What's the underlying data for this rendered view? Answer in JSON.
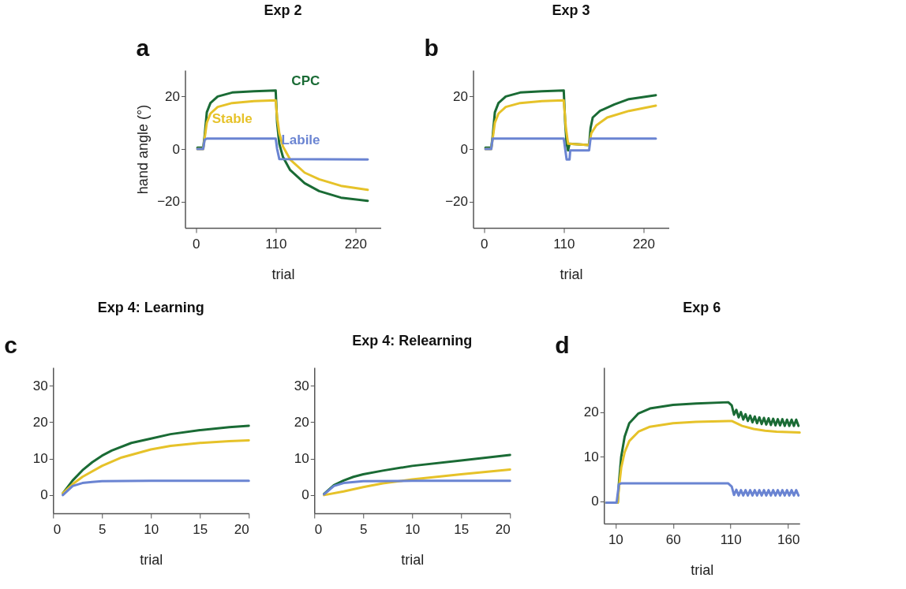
{
  "chart_data": [
    {
      "type": "line",
      "title": "Exp 2",
      "xlabel": "trial",
      "ylabel": "hand angle (°)",
      "xlim": [
        -15,
        255
      ],
      "xticks": [
        0,
        110,
        220
      ],
      "ylim": [
        -30,
        30
      ],
      "yticks": [
        -20,
        0,
        20
      ],
      "annotations": [
        "a"
      ],
      "series": [
        {
          "name": "CPC",
          "color": "#1a6b35",
          "x": [
            2,
            10,
            12,
            15,
            20,
            30,
            50,
            80,
            110,
            112,
            115,
            120,
            130,
            150,
            170,
            200,
            237
          ],
          "values": [
            0.5,
            0.5,
            5,
            14,
            17.5,
            20,
            21.5,
            22,
            22.3,
            10,
            2,
            -3,
            -8,
            -13,
            -16,
            -18.5,
            -19.7
          ]
        },
        {
          "name": "Stable",
          "color": "#e6c229",
          "x": [
            2,
            10,
            12,
            15,
            20,
            30,
            50,
            80,
            110,
            112,
            115,
            120,
            130,
            150,
            170,
            200,
            237
          ],
          "values": [
            0,
            0,
            4,
            10,
            13.5,
            16,
            17.5,
            18.2,
            18.5,
            12,
            6,
            1,
            -4,
            -9,
            -11.5,
            -14,
            -15.5
          ]
        },
        {
          "name": "Labile",
          "color": "#6a84d2",
          "x": [
            2,
            10,
            12,
            15,
            110,
            112,
            115,
            237
          ],
          "values": [
            0,
            0,
            3.5,
            4,
            4,
            0,
            -3.8,
            -4
          ]
        }
      ]
    },
    {
      "type": "line",
      "title": "Exp 3",
      "xlabel": "trial",
      "xlim": [
        -15,
        255
      ],
      "xticks": [
        0,
        110,
        220
      ],
      "ylim": [
        -30,
        30
      ],
      "yticks": [
        -20,
        0,
        20
      ],
      "annotations": [
        "b"
      ],
      "series": [
        {
          "color": "#1a6b35",
          "x": [
            2,
            10,
            12,
            15,
            20,
            30,
            50,
            80,
            110,
            112,
            114,
            116,
            118,
            145,
            147,
            150,
            160,
            180,
            200,
            237
          ],
          "values": [
            0.5,
            0.5,
            5,
            14,
            17.5,
            20,
            21.5,
            22,
            22.3,
            10,
            2,
            -0.5,
            2,
            1.5,
            8,
            12,
            14.5,
            17,
            19,
            20.5
          ]
        },
        {
          "color": "#e6c229",
          "x": [
            2,
            10,
            12,
            15,
            20,
            30,
            50,
            80,
            110,
            113,
            116,
            145,
            148,
            155,
            170,
            200,
            237
          ],
          "values": [
            0,
            0,
            4,
            10,
            13.5,
            16,
            17.5,
            18.2,
            18.5,
            8,
            2,
            1.5,
            6,
            9,
            12,
            14.5,
            16.5
          ]
        },
        {
          "color": "#6a84d2",
          "x": [
            2,
            10,
            12,
            110,
            112,
            114,
            118,
            119,
            145,
            147,
            237
          ],
          "values": [
            0,
            0,
            4,
            4,
            0,
            -4,
            -4,
            -0.5,
            -0.5,
            4,
            4
          ]
        }
      ]
    },
    {
      "type": "line",
      "title": "Exp 4: Learning",
      "xlabel": "trial",
      "xlim": [
        0,
        20
      ],
      "xticks": [
        0,
        5,
        10,
        15,
        20
      ],
      "ylim": [
        -5,
        35
      ],
      "yticks": [
        0,
        10,
        20,
        30
      ],
      "annotations": [
        "c"
      ],
      "series": [
        {
          "color": "#1a6b35",
          "x": [
            1,
            2,
            3,
            4,
            5,
            6,
            8,
            10,
            12,
            15,
            18,
            20
          ],
          "values": [
            0.5,
            4,
            6.8,
            9,
            10.8,
            12.2,
            14.3,
            15.5,
            16.7,
            17.8,
            18.6,
            19
          ]
        },
        {
          "color": "#e6c229",
          "x": [
            1,
            2,
            3,
            5,
            7,
            10,
            12,
            15,
            18,
            20
          ],
          "values": [
            0.5,
            3,
            5,
            8,
            10.3,
            12.5,
            13.5,
            14.3,
            14.8,
            15
          ]
        },
        {
          "color": "#6a84d2",
          "x": [
            1,
            2,
            3,
            4,
            5,
            10,
            20
          ],
          "values": [
            0,
            2.5,
            3.3,
            3.6,
            3.8,
            3.9,
            3.9
          ]
        }
      ]
    },
    {
      "type": "line",
      "title": "Exp 4: Relearning",
      "xlabel": "trial",
      "xlim": [
        0,
        20
      ],
      "xticks": [
        0,
        5,
        10,
        15,
        20
      ],
      "ylim": [
        -5,
        35
      ],
      "yticks": [
        0,
        10,
        20,
        30
      ],
      "series": [
        {
          "color": "#1a6b35",
          "x": [
            1,
            2,
            3,
            4,
            5,
            7,
            10,
            15,
            20
          ],
          "values": [
            0.3,
            2.7,
            4,
            5,
            5.7,
            6.7,
            8,
            9.5,
            11
          ]
        },
        {
          "color": "#e6c229",
          "x": [
            1,
            3,
            5,
            7,
            10,
            15,
            20
          ],
          "values": [
            0,
            1,
            2.2,
            3.2,
            4.3,
            5.7,
            7
          ]
        },
        {
          "color": "#6a84d2",
          "x": [
            1,
            2,
            3,
            5,
            10,
            20
          ],
          "values": [
            0.2,
            2.5,
            3.3,
            3.8,
            3.9,
            3.9
          ]
        }
      ]
    },
    {
      "type": "line",
      "title": "Exp 6",
      "xlabel": "trial",
      "xlim": [
        0,
        170
      ],
      "xticks": [
        10,
        60,
        110,
        160
      ],
      "ylim": [
        -5,
        30
      ],
      "yticks": [
        0,
        10,
        20
      ],
      "annotations": [
        "d"
      ],
      "series": [
        {
          "color": "#1a6b35",
          "x": [
            2,
            12,
            13,
            15,
            18,
            22,
            30,
            40,
            60,
            80,
            108,
            111,
            113,
            115,
            117,
            119,
            121,
            123,
            125,
            127,
            129,
            131,
            133,
            135,
            137,
            139,
            141,
            143,
            145,
            147,
            149,
            151,
            153,
            155,
            157,
            159,
            161,
            163,
            165,
            167,
            169
          ],
          "values": [
            -0.3,
            -0.3,
            4,
            10,
            14.5,
            17.5,
            19.7,
            20.8,
            21.6,
            21.9,
            22.2,
            21.5,
            19.4,
            20.5,
            18.8,
            20.0,
            18.3,
            19.5,
            18.0,
            19.2,
            17.7,
            19.0,
            17.5,
            18.8,
            17.3,
            18.7,
            17.2,
            18.6,
            17.1,
            18.5,
            17.0,
            18.4,
            17.0,
            18.4,
            16.9,
            18.3,
            16.9,
            18.3,
            16.9,
            18.3,
            16.9
          ]
        },
        {
          "color": "#e6c229",
          "x": [
            2,
            12,
            13,
            15,
            18,
            22,
            30,
            40,
            60,
            80,
            108,
            111,
            115,
            120,
            130,
            140,
            150,
            170
          ],
          "values": [
            -0.3,
            -0.3,
            3,
            7.5,
            11,
            13.5,
            15.6,
            16.7,
            17.5,
            17.8,
            18,
            18,
            17.5,
            16.9,
            16.2,
            15.8,
            15.6,
            15.4
          ]
        },
        {
          "color": "#6a84d2",
          "x": [
            2,
            11,
            13,
            15,
            108,
            111,
            113,
            115,
            117,
            119,
            121,
            123,
            125,
            127,
            129,
            131,
            133,
            135,
            137,
            139,
            141,
            143,
            145,
            147,
            149,
            151,
            153,
            155,
            157,
            159,
            161,
            163,
            165,
            167,
            169
          ],
          "values": [
            -0.3,
            -0.3,
            3.8,
            4,
            4,
            3.3,
            1.4,
            2.6,
            1.3,
            2.5,
            1.3,
            2.5,
            1.3,
            2.5,
            1.3,
            2.5,
            1.3,
            2.5,
            1.3,
            2.5,
            1.3,
            2.5,
            1.3,
            2.5,
            1.3,
            2.5,
            1.3,
            2.5,
            1.3,
            2.5,
            1.3,
            2.5,
            1.3,
            2.5,
            1.3
          ]
        }
      ]
    }
  ]
}
